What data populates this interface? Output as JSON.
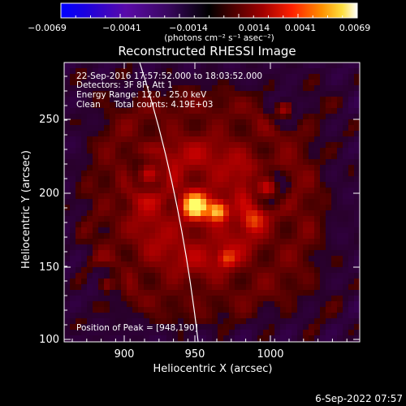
{
  "colorbar": {
    "tick_labels": [
      "−0.0069",
      "−0.0041",
      "−0.0014",
      "0.0014",
      "0.0041",
      "0.0069"
    ],
    "units": "(photons cm⁻² s⁻¹ asec⁻²)"
  },
  "plot": {
    "title": "Reconstructed RHESSI Image",
    "x_label": "Heliocentric X (arcsec)",
    "y_label": "Heliocentric Y (arcsec)",
    "x_ticks": [
      "900",
      "950",
      "1000"
    ],
    "y_ticks": [
      "100",
      "150",
      "200",
      "250"
    ],
    "info_lines": [
      "22-Sep-2016 17:57:52.000 to 18:03:52.000",
      "Detectors: 3F 8F, Att 1",
      "Energy Range: 12.0 - 25.0 keV",
      "Clean     Total counts: 4.19E+03"
    ],
    "peak_label": "Position of Peak = [948,190]"
  },
  "footer": {
    "timestamp": "6-Sep-2022 07:57"
  },
  "colors": {
    "background": "#000000",
    "limb": "#ffffff",
    "text": "#ffffff"
  }
}
